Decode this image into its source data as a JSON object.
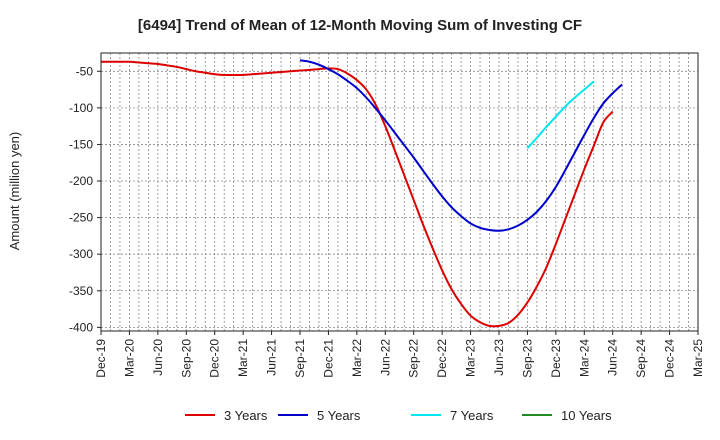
{
  "chart_data": {
    "type": "line",
    "title": "[6494]  Trend of Mean of 12-Month Moving Sum of Investing CF",
    "xlabel": "",
    "ylabel": "Amount (million yen)",
    "ylim": [
      -405,
      -25
    ],
    "yticks": [
      -50,
      -100,
      -150,
      -200,
      -250,
      -300,
      -350,
      -400
    ],
    "x_tick_labels": [
      "Dec-19",
      "Mar-20",
      "Jun-20",
      "Sep-20",
      "Dec-20",
      "Mar-21",
      "Jun-21",
      "Sep-21",
      "Dec-21",
      "Mar-22",
      "Jun-22",
      "Sep-22",
      "Dec-22",
      "Mar-23",
      "Jun-23",
      "Sep-23",
      "Dec-23",
      "Mar-24",
      "Jun-24",
      "Sep-24",
      "Dec-24",
      "Mar-25"
    ],
    "grid": true,
    "legend_position": "bottom",
    "series": [
      {
        "name": "3 Years",
        "color": "#dd0000",
        "start_month": 0,
        "values": [
          -37,
          -37,
          -37,
          -37,
          -38,
          -39,
          -40,
          -42,
          -44,
          -47,
          -50,
          -52,
          -54,
          -55,
          -55,
          -55,
          -54,
          -53,
          -52,
          -51,
          -50,
          -49,
          -48,
          -47,
          -46,
          -47,
          -53,
          -62,
          -75,
          -96,
          -125,
          -158,
          -192,
          -226,
          -260,
          -292,
          -322,
          -348,
          -368,
          -384,
          -393,
          -398,
          -398,
          -394,
          -383,
          -366,
          -344,
          -318,
          -286,
          -252,
          -218,
          -184,
          -152,
          -120,
          -105
        ]
      },
      {
        "name": "5 Years",
        "color": "#0000cc",
        "start_month": 21,
        "values": [
          -35,
          -37,
          -41,
          -47,
          -54,
          -63,
          -73,
          -86,
          -101,
          -117,
          -134,
          -151,
          -168,
          -186,
          -204,
          -221,
          -236,
          -248,
          -258,
          -264,
          -267,
          -268,
          -266,
          -261,
          -253,
          -242,
          -227,
          -208,
          -185,
          -161,
          -137,
          -114,
          -94,
          -80,
          -68
        ]
      },
      {
        "name": "7 Years",
        "color": "#00e5ee",
        "start_month": 45,
        "values": [
          -155,
          -141,
          -126,
          -112,
          -98,
          -86,
          -75,
          -64
        ]
      },
      {
        "name": "10 Years",
        "color": "#228b22",
        "start_month": 0,
        "values": []
      }
    ]
  }
}
